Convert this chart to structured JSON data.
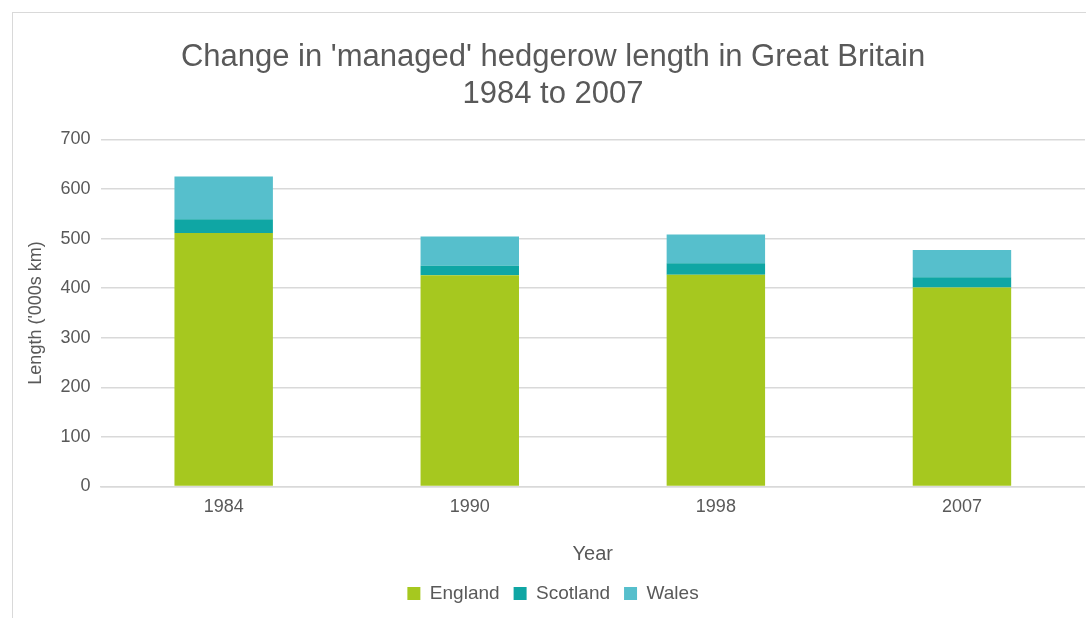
{
  "chart_data": {
    "type": "bar",
    "title": [
      "Change in 'managed' hedgerow length in Great Britain",
      "1984 to 2007"
    ],
    "xlabel": "Year",
    "ylabel": "Length ('000s km)",
    "categories": [
      "1984",
      "1990",
      "1998",
      "2007"
    ],
    "series": [
      {
        "name": "England",
        "color": "#a6c81f",
        "values": [
          511,
          426,
          427,
          401
        ]
      },
      {
        "name": "Scotland",
        "color": "#0fa6a4",
        "values": [
          28,
          19,
          23,
          21
        ]
      },
      {
        "name": "Wales",
        "color": "#56bfcc",
        "values": [
          86,
          59,
          58,
          55
        ]
      }
    ],
    "stacked": true,
    "ylim": [
      0,
      700
    ],
    "yticks": [
      0,
      100,
      200,
      300,
      400,
      500,
      600,
      700
    ],
    "grid": "y",
    "legend": "bottom"
  }
}
